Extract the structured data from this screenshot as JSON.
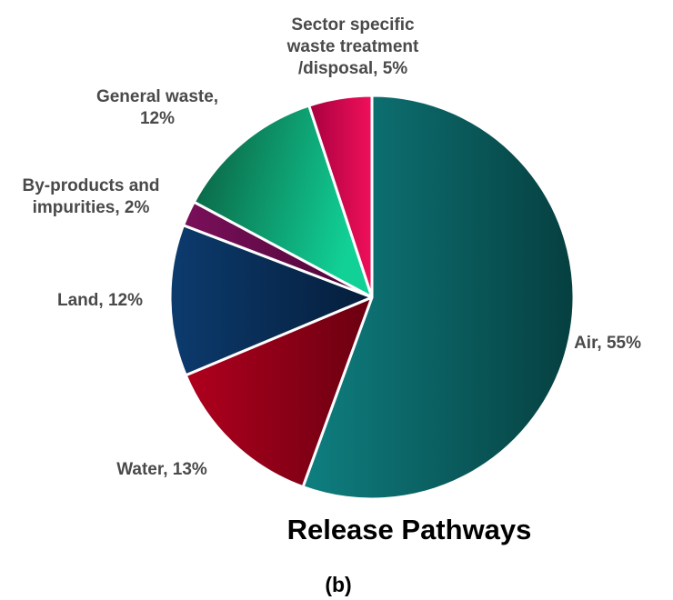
{
  "chart_data": {
    "type": "pie",
    "title": "Release Pathways",
    "panel_label": "(b)",
    "slices": [
      {
        "label": [
          "Air,  55%"
        ],
        "value": 55,
        "colors": [
          "#0f7f80",
          "#063f40"
        ]
      },
      {
        "label": [
          "Water, 13%"
        ],
        "value": 13,
        "colors": [
          "#b0001e",
          "#6a0010"
        ]
      },
      {
        "label": [
          "Land, 12%"
        ],
        "value": 12,
        "colors": [
          "#0c3b6e",
          "#051d3a"
        ]
      },
      {
        "label": [
          "By-products and",
          "impurities, 2%"
        ],
        "value": 2,
        "colors": [
          "#7a0f5a",
          "#4b0636"
        ]
      },
      {
        "label": [
          "General waste,",
          "12%"
        ],
        "value": 12,
        "colors": [
          "#0a5a3c",
          "#11d197"
        ]
      },
      {
        "label": [
          "Sector specific",
          "waste treatment",
          "/disposal, 5%"
        ],
        "value": 5,
        "colors": [
          "#a8003f",
          "#f0105a"
        ]
      }
    ]
  }
}
